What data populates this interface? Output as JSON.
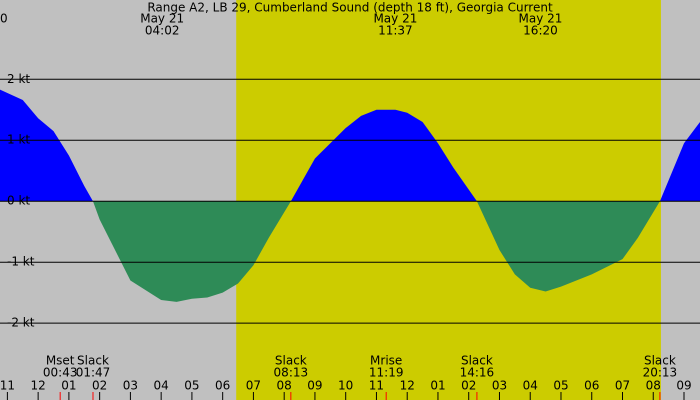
{
  "chart_data": {
    "type": "area",
    "title": "Range A2, LB 29, Cumberland Sound (depth 18 ft), Georgia Current",
    "corner_label": "0",
    "background": "#c0c0c0",
    "daylight": {
      "color": "#cccc00",
      "start": 6.44,
      "end": 20.25
    },
    "xlim": [
      -1.24,
      21.52
    ],
    "ylim": [
      -3.26,
      3.3
    ],
    "yticks": [
      {
        "value": 2,
        "label": "2 kt"
      },
      {
        "value": 1,
        "label": "1 kt"
      },
      {
        "value": 0,
        "label": "0 kt"
      },
      {
        "value": -1,
        "label": "-1 kt"
      },
      {
        "value": -2,
        "label": "-2 kt"
      }
    ],
    "xticks": [
      {
        "value": -1,
        "label": "11"
      },
      {
        "value": 0,
        "label": "12"
      },
      {
        "value": 1,
        "label": "01"
      },
      {
        "value": 2,
        "label": "02"
      },
      {
        "value": 3,
        "label": "03"
      },
      {
        "value": 4,
        "label": "04"
      },
      {
        "value": 5,
        "label": "05"
      },
      {
        "value": 6,
        "label": "06"
      },
      {
        "value": 7,
        "label": "07"
      },
      {
        "value": 8,
        "label": "08"
      },
      {
        "value": 9,
        "label": "09"
      },
      {
        "value": 10,
        "label": "10"
      },
      {
        "value": 11,
        "label": "11"
      },
      {
        "value": 12,
        "label": "12"
      },
      {
        "value": 13,
        "label": "01"
      },
      {
        "value": 14,
        "label": "02"
      },
      {
        "value": 15,
        "label": "03"
      },
      {
        "value": 16,
        "label": "04"
      },
      {
        "value": 17,
        "label": "05"
      },
      {
        "value": 18,
        "label": "06"
      },
      {
        "value": 19,
        "label": "07"
      },
      {
        "value": 20,
        "label": "08"
      },
      {
        "value": 21,
        "label": "09"
      }
    ],
    "x": [
      -1.24,
      -0.5,
      0,
      0.5,
      1.0,
      1.5,
      1.783,
      2,
      2.5,
      3,
      4,
      4.5,
      5,
      5.5,
      6,
      6.5,
      7,
      7.5,
      8.217,
      9,
      10,
      10.5,
      11,
      11.617,
      12,
      12.5,
      13,
      13.5,
      14.267,
      15,
      15.5,
      16,
      16.5,
      17,
      17.5,
      18,
      19,
      19.5,
      20.217,
      21,
      21.52
    ],
    "series": [
      {
        "flood_color": "#0000ff",
        "ebb_color": "#2e8b57",
        "values": [
          1.83,
          1.66,
          1.36,
          1.15,
          0.75,
          0.25,
          0,
          -0.3,
          -0.8,
          -1.3,
          -1.62,
          -1.65,
          -1.6,
          -1.58,
          -1.5,
          -1.35,
          -1.05,
          -0.6,
          0,
          0.7,
          1.2,
          1.4,
          1.5,
          1.5,
          1.45,
          1.3,
          0.95,
          0.55,
          0,
          -0.8,
          -1.2,
          -1.42,
          -1.48,
          -1.4,
          -1.3,
          -1.2,
          -0.95,
          -0.6,
          0,
          0.95,
          1.3
        ]
      }
    ],
    "top_labels": [
      {
        "date": "May 21",
        "time": "04:02"
      },
      {
        "date": "May 21",
        "time": "11:37"
      },
      {
        "date": "May 21",
        "time": "16:20"
      }
    ],
    "events": [
      {
        "label": "Mset",
        "time": "00:43"
      },
      {
        "label": "Slack",
        "time": "01:47"
      },
      {
        "label": "Slack",
        "time": "08:13"
      },
      {
        "label": "Mrise",
        "time": "11:19"
      },
      {
        "label": "Slack",
        "time": "14:16"
      },
      {
        "label": "Slack",
        "time": "20:13"
      }
    ]
  }
}
